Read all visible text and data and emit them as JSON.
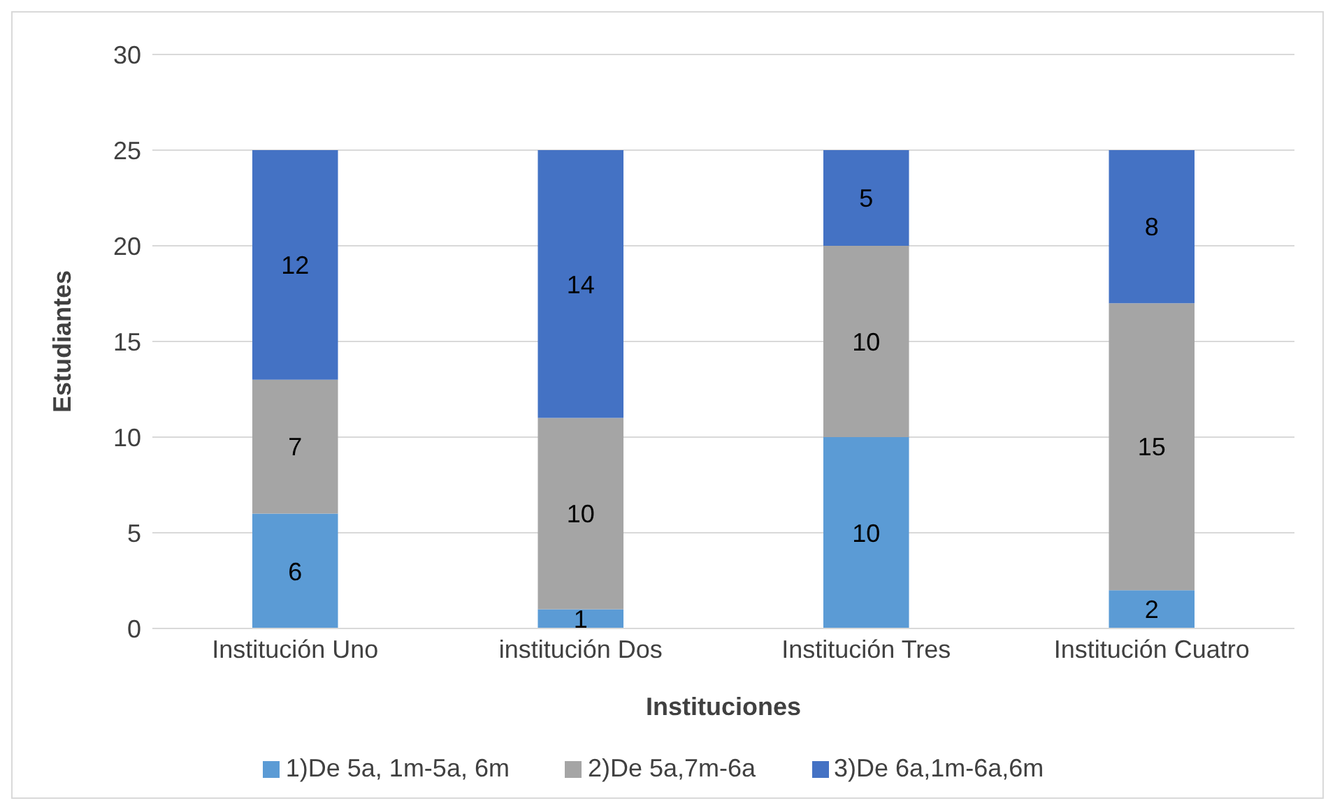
{
  "chart_data": {
    "type": "bar",
    "stacked": true,
    "xlabel": "Instituciones",
    "ylabel": "Estudiantes",
    "categories": [
      "Institución Uno",
      "institución Dos",
      "Institución Tres",
      "Institución Cuatro"
    ],
    "series": [
      {
        "name": "1)De 5a, 1m-5a, 6m",
        "color": "#5b9bd5",
        "values": [
          6,
          1,
          10,
          2
        ]
      },
      {
        "name": "2)De 5a,7m-6a",
        "color": "#a5a5a5",
        "values": [
          7,
          10,
          10,
          15
        ]
      },
      {
        "name": "3)De 6a,1m-6a,6m",
        "color": "#4472c4",
        "values": [
          12,
          14,
          5,
          8
        ]
      }
    ],
    "ylim": [
      0,
      30
    ],
    "yticks": [
      0,
      5,
      10,
      15,
      20,
      25,
      30
    ],
    "grid": "y",
    "legend": "bottom",
    "data_labels": true
  }
}
